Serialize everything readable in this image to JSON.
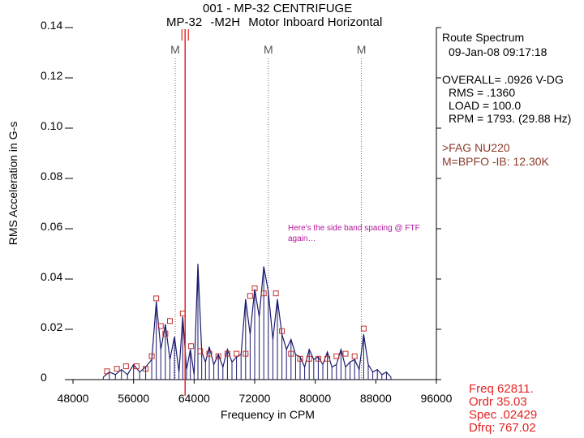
{
  "header": {
    "title_line1": "001  - MP-32 CENTRIFUGE",
    "title_line2_a": "MP-32",
    "title_line2_b": "-M2H",
    "title_line2_c": "Motor Inboard Horizontal"
  },
  "info_panel": {
    "heading": "Route Spectrum",
    "date": "09-Jan-08  09:17:18",
    "overall": "OVERALL= .0926 V-DG",
    "rms": "RMS =  .1360",
    "load": "LOAD = 100.0",
    "rpm": "RPM = 1793. (29.88 Hz)",
    "bearing": ">FAG NU220",
    "fault_freq": "M=BPFO -IB: 12.30K"
  },
  "cursor_readout": {
    "freq": "Freq  62811.",
    "ordr": "Ordr   35.03",
    "spec": "Spec  .02429",
    "dfrq": "Dfrq: 767.02"
  },
  "annotation": "Here's the side band spacing @ FTF again…",
  "colors": {
    "spectrum": "#1a1a6e",
    "cursor": "#e32222",
    "marker": "#c0302e",
    "annotation": "#b5159c",
    "panel_brown": "#8b3a2a"
  },
  "chart_data": {
    "type": "line",
    "title": "001  - MP-32 CENTRIFUGE",
    "xlabel": "Frequency in CPM",
    "ylabel": "RMS Acceleration in G-s",
    "xlim": [
      48000,
      96000
    ],
    "ylim": [
      0,
      0.14
    ],
    "x_ticks": [
      48000,
      56000,
      64000,
      72000,
      80000,
      88000,
      96000
    ],
    "y_ticks": [
      0,
      0.02,
      0.04,
      0.06,
      0.08,
      0.1,
      0.12,
      0.14
    ],
    "x_tick_labels": [
      "48000",
      "56000",
      "64000",
      "72000",
      "80000",
      "88000",
      "96000"
    ],
    "y_tick_labels": [
      "0",
      "0.02",
      "0.04",
      "0.06",
      "0.08",
      "0.10",
      "0.12",
      "0.14"
    ],
    "cursor_x": 62811,
    "fault_marker_label": "M",
    "fault_markers_x": [
      61500,
      73800,
      86100
    ],
    "series": [
      {
        "x": [
          52000,
          52800,
          53600,
          54400,
          55200,
          56000,
          56800,
          57600,
          58400,
          59000,
          59600,
          60200,
          60800,
          61400,
          62000,
          62500,
          63000,
          63500,
          64000,
          64500,
          65000,
          65500,
          66000,
          66600,
          67200,
          67800,
          68400,
          69000,
          69600,
          70200,
          70800,
          71400,
          72000,
          72600,
          73200,
          73800,
          74400,
          75000,
          75600,
          76200,
          76800,
          77400,
          78000,
          78600,
          79200,
          79800,
          80400,
          81000,
          81600,
          82200,
          82800,
          83400,
          84000,
          84600,
          85200,
          85800,
          86400,
          87000,
          87600,
          88200,
          88800,
          89400,
          90000
        ],
        "y": [
          0.001,
          0.003,
          0.002,
          0.004,
          0.002,
          0.006,
          0.003,
          0.005,
          0.008,
          0.031,
          0.012,
          0.022,
          0.008,
          0.017,
          0.003,
          0.025,
          0.004,
          0.012,
          0.002,
          0.046,
          0.011,
          0.007,
          0.013,
          0.006,
          0.01,
          0.005,
          0.012,
          0.007,
          0.009,
          0.01,
          0.032,
          0.018,
          0.036,
          0.025,
          0.045,
          0.035,
          0.016,
          0.032,
          0.018,
          0.012,
          0.016,
          0.01,
          0.009,
          0.005,
          0.012,
          0.008,
          0.009,
          0.006,
          0.011,
          0.005,
          0.006,
          0.012,
          0.005,
          0.007,
          0.008,
          0.004,
          0.018,
          0.006,
          0.003,
          0.004,
          0.002,
          0.003,
          0.001
        ]
      }
    ],
    "peak_markers": [
      {
        "x": 52500,
        "y": 0.002
      },
      {
        "x": 53800,
        "y": 0.003
      },
      {
        "x": 55000,
        "y": 0.004
      },
      {
        "x": 56400,
        "y": 0.004
      },
      {
        "x": 57600,
        "y": 0.003
      },
      {
        "x": 58400,
        "y": 0.008
      },
      {
        "x": 59000,
        "y": 0.031
      },
      {
        "x": 59600,
        "y": 0.02
      },
      {
        "x": 60200,
        "y": 0.017
      },
      {
        "x": 60800,
        "y": 0.022
      },
      {
        "x": 62500,
        "y": 0.025
      },
      {
        "x": 63600,
        "y": 0.012
      },
      {
        "x": 64800,
        "y": 0.01
      },
      {
        "x": 66000,
        "y": 0.009
      },
      {
        "x": 67200,
        "y": 0.008
      },
      {
        "x": 68400,
        "y": 0.009
      },
      {
        "x": 69600,
        "y": 0.009
      },
      {
        "x": 70800,
        "y": 0.009
      },
      {
        "x": 71400,
        "y": 0.032
      },
      {
        "x": 72000,
        "y": 0.035
      },
      {
        "x": 73200,
        "y": 0.033
      },
      {
        "x": 74800,
        "y": 0.033
      },
      {
        "x": 75600,
        "y": 0.018
      },
      {
        "x": 76800,
        "y": 0.009
      },
      {
        "x": 78000,
        "y": 0.007
      },
      {
        "x": 79200,
        "y": 0.007
      },
      {
        "x": 80400,
        "y": 0.007
      },
      {
        "x": 81600,
        "y": 0.007
      },
      {
        "x": 82800,
        "y": 0.008
      },
      {
        "x": 84000,
        "y": 0.009
      },
      {
        "x": 85200,
        "y": 0.008
      },
      {
        "x": 86400,
        "y": 0.019
      }
    ]
  }
}
